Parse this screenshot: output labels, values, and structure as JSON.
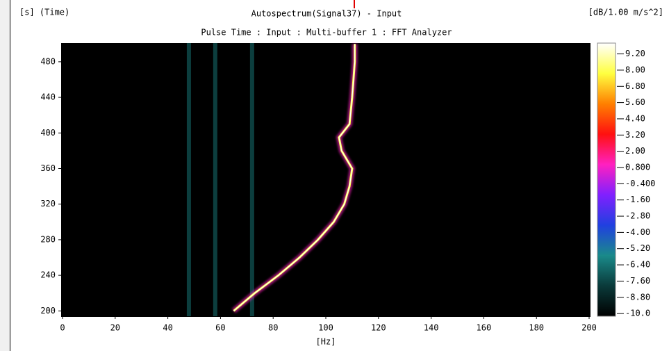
{
  "chart_data": {
    "type": "spectrogram",
    "title": "Autospectrum(Signal37) - Input",
    "subtitle": "Pulse Time : Input : Multi-buffer 1 : FFT Analyzer",
    "y_label": "[s] (Time)",
    "x_label": "[Hz]",
    "colorbar_label": "[dB/1.00 m/s^2]",
    "xlim": [
      0,
      200
    ],
    "xticks": [
      0,
      20,
      40,
      60,
      80,
      100,
      120,
      140,
      160,
      180,
      200
    ],
    "ylim": [
      194,
      501
    ],
    "yticks": [
      200,
      240,
      280,
      320,
      360,
      400,
      440,
      480
    ],
    "clim": [
      -10.2,
      10.0
    ],
    "cticks": [
      {
        "value": 9.2,
        "label": "9.20"
      },
      {
        "value": 8.0,
        "label": "8.00"
      },
      {
        "value": 6.8,
        "label": "6.80"
      },
      {
        "value": 5.6,
        "label": "5.60"
      },
      {
        "value": 4.4,
        "label": "4.40"
      },
      {
        "value": 3.2,
        "label": "3.20"
      },
      {
        "value": 2.0,
        "label": "2.00"
      },
      {
        "value": 0.8,
        "label": "0.800"
      },
      {
        "value": -0.4,
        "label": "-0.400"
      },
      {
        "value": -1.6,
        "label": "-1.60"
      },
      {
        "value": -2.8,
        "label": "-2.80"
      },
      {
        "value": -4.0,
        "label": "-4.00"
      },
      {
        "value": -5.2,
        "label": "-5.20"
      },
      {
        "value": -6.4,
        "label": "-6.40"
      },
      {
        "value": -7.6,
        "label": "-7.60"
      },
      {
        "value": -8.8,
        "label": "-8.80"
      },
      {
        "value": -10.0,
        "label": "-10.0"
      }
    ],
    "colormap": [
      "#000000",
      "#0a3a3a",
      "#1a8a8a",
      "#2040e0",
      "#8020ff",
      "#ff20c0",
      "#ff1010",
      "#ff8000",
      "#ffff40",
      "#ffffff"
    ],
    "ridge": {
      "x": [
        65,
        73,
        82,
        90,
        97,
        103,
        107,
        109,
        110,
        106,
        105,
        109,
        110,
        111,
        111
      ],
      "y": [
        200,
        220,
        240,
        260,
        280,
        300,
        320,
        340,
        360,
        380,
        395,
        410,
        440,
        480,
        500
      ]
    },
    "harmonics": [
      48,
      58,
      72
    ]
  }
}
